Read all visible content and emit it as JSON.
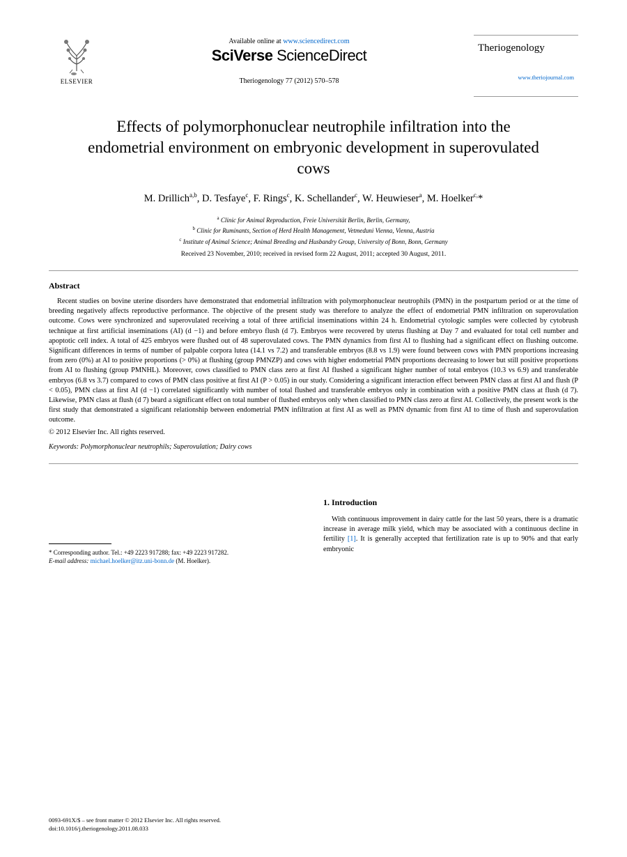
{
  "header": {
    "elsevier_label": "ELSEVIER",
    "available_text": "Available online at ",
    "available_url": "www.sciencedirect.com",
    "sciverse_prefix": "SciVerse ",
    "sciverse_suffix": "ScienceDirect",
    "journal_ref": "Theriogenology 77 (2012) 570–578",
    "journal_name": "Theriogenology",
    "journal_url": "www.theriojournal.com"
  },
  "title": "Effects of polymorphonuclear neutrophile infiltration into the endometrial environment on embryonic development in superovulated cows",
  "authors_html": "M. Drillich<sup>a,b</sup>, D. Tesfaye<sup>c</sup>, F. Rings<sup>c</sup>, K. Schellander<sup>c</sup>, W. Heuwieser<sup>a</sup>, M. Hoelker<sup>c,</sup>*",
  "affiliations": [
    "<sup>a</sup> Clinic for Animal Reproduction, Freie Universität Berlin, Berlin, Germany,",
    "<sup>b</sup> Clinic for Ruminants, Section of Herd Health Management, Vetmeduni Vienna, Vienna, Austria",
    "<sup>c</sup> Institute of Animal Science; Animal Breeding and Husbandry Group, University of Bonn, Bonn, Germany"
  ],
  "dates": "Received 23 November, 2010; received in revised form 22 August, 2011; accepted 30 August, 2011.",
  "abstract": {
    "heading": "Abstract",
    "text": "Recent studies on bovine uterine disorders have demonstrated that endometrial infiltration with polymorphonuclear neutrophils (PMN) in the postpartum period or at the time of breeding negatively affects reproductive performance. The objective of the present study was therefore to analyze the effect of endometrial PMN infiltration on superovulation outcome. Cows were synchronized and superovulated receiving a total of three artificial inseminations within 24 h. Endometrial cytologic samples were collected by cytobrush technique at first artificial inseminations (AI) (d −1) and before embryo flush (d 7). Embryos were recovered by uterus flushing at Day 7 and evaluated for total cell number and apoptotic cell index. A total of 425 embryos were flushed out of 48 superovulated cows. The PMN dynamics from first AI to flushing had a significant effect on flushing outcome. Significant differences in terms of number of palpable corpora lutea (14.1 vs 7.2) and transferable embryos (8.8 vs 1.9) were found between cows with PMN proportions increasing from zero (0%) at AI to positive proportions (> 0%) at flushing (group PMNZP) and cows with higher endometrial PMN proportions decreasing to lower but still positive proportions from AI to flushing (group PMNHL). Moreover, cows classified to PMN class zero at first AI flushed a significant higher number of total embryos (10.3 vs 6.9) and transferable embryos (6.8 vs 3.7) compared to cows of PMN class positive at first AI (P > 0.05) in our study. Considering a significant interaction effect between PMN class at first AI and flush (P < 0.05), PMN class at first AI (d −1) correlated significantly with number of total flushed and transferable embryos only in combination with a positive PMN class at flush (d 7). Likewise, PMN class at flush (d 7) beard a significant effect on total number of flushed embryos only when classified to PMN class zero at first AI. Collectively, the present work is the first study that demonstrated a significant relationship between endometrial PMN infiltration at first AI as well as PMN dynamic from first AI to time of flush and superovulation outcome.",
    "copyright": "© 2012 Elsevier Inc. All rights reserved."
  },
  "keywords": {
    "label": "Keywords:",
    "text": " Polymorphonuclear neutrophils; Superovulation; Dairy cows"
  },
  "left_col": {
    "corr_line1": "* Corresponding author. Tel.: +49 2223 917288; fax: +49 2223 917282.",
    "email_label": "E-mail address:",
    "email": "michael.hoelker@itz.uni-bonn.de",
    "email_suffix": " (M. Hoelker)."
  },
  "right_col": {
    "section_heading": "1. Introduction",
    "body_pre": "With continuous improvement in dairy cattle for the last 50 years, there is a dramatic increase in average milk yield, which may be associated with a continuous decline in fertility ",
    "ref": "[1]",
    "body_post": ". It is generally accepted that fertilization rate is up to 90% and that early embryonic"
  },
  "footer": {
    "line1": "0093-691X/$ – see front matter © 2012 Elsevier Inc. All rights reserved.",
    "line2": "doi:10.1016/j.theriogenology.2011.08.033"
  },
  "colors": {
    "link": "#0066cc",
    "text": "#000000",
    "rule": "#999999"
  }
}
